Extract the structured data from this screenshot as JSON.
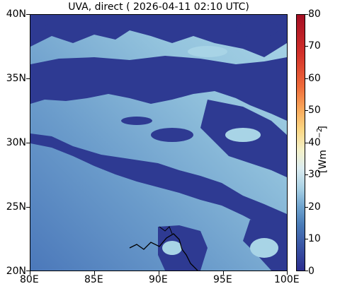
{
  "title": "UVA, direct ( 2026-04-11 02:10 UTC)",
  "map": {
    "y_ticks": [
      "40N",
      "35N",
      "30N",
      "25N",
      "20N"
    ],
    "x_ticks": [
      "80E",
      "85E",
      "90E",
      "95E",
      "100E"
    ],
    "lon_range": [
      80,
      100
    ],
    "lat_range": [
      20,
      40
    ]
  },
  "colorbar": {
    "ticks": [
      "80",
      "70",
      "60",
      "50",
      "40",
      "30",
      "20",
      "10",
      "0"
    ],
    "range": [
      0,
      80
    ],
    "label": "[Wm",
    "label_sup": "−2",
    "label_end": "]"
  },
  "colors": {
    "clear_sky": "#9fcde2",
    "cloud": "#2e3a92",
    "gradient_left": "#4b78ba",
    "coastline": "#000000"
  }
}
